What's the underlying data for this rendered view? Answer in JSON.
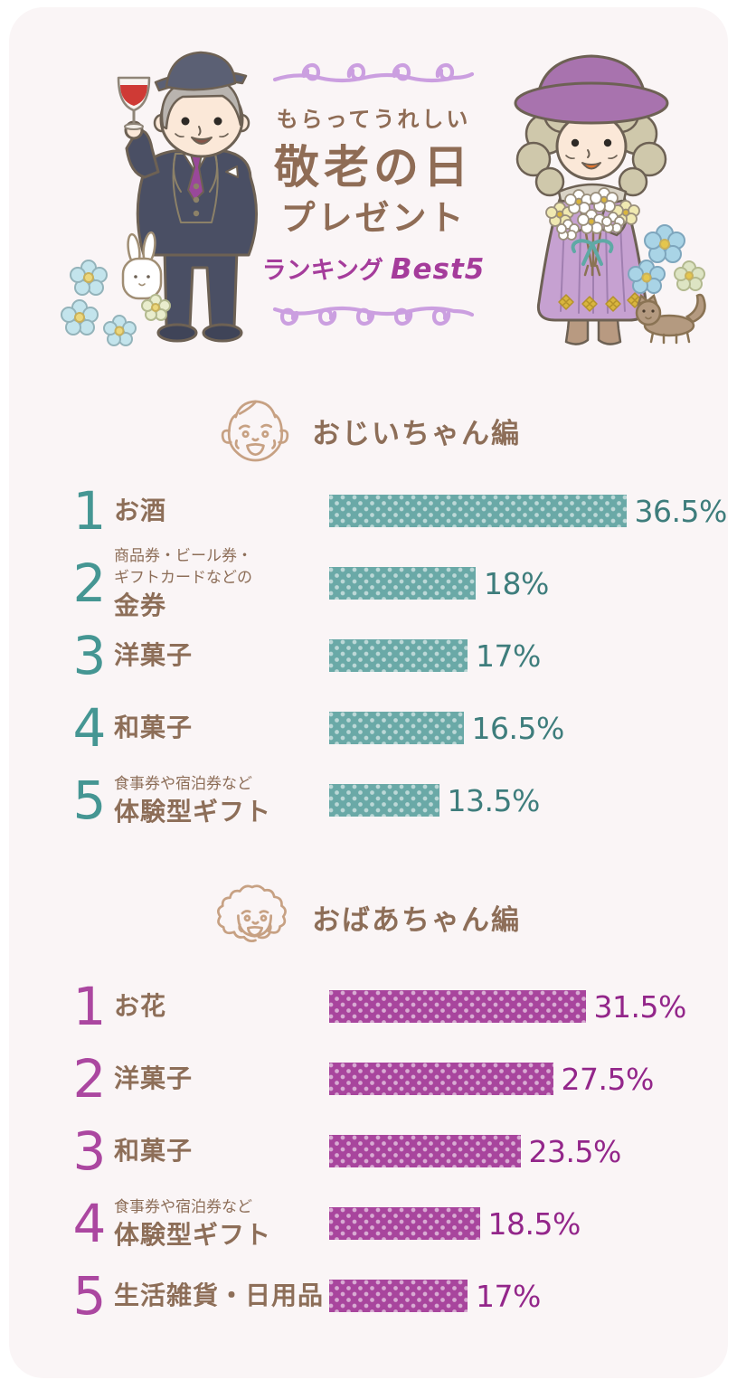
{
  "page": {
    "outer_bg": "#ffffff",
    "card_bg": "#faf5f6",
    "squiggle_color": "#cb9fe0",
    "text_brown": "#8f6c55",
    "icon_tan": "#c7a183"
  },
  "header": {
    "tagline": "もらってうれしい",
    "title_line1": "敬老の日",
    "title_line2": "プレゼント",
    "ranking_label": "ランキング",
    "best5_label": "Best5",
    "accent_color": "#a53c9b"
  },
  "chart_data": [
    {
      "type": "bar",
      "orientation": "horizontal",
      "title": "おじいちゃん編",
      "unit": "%",
      "xlim": [
        0,
        40
      ],
      "bar_color": "#6aa9a7",
      "rank_color": "#459693",
      "value_color": "#3e7d7c",
      "categories": [
        "お酒",
        "金券",
        "洋菓子",
        "和菓子",
        "体験型ギフト"
      ],
      "values": [
        36.5,
        18,
        17,
        16.5,
        13.5
      ],
      "rows": [
        {
          "rank": "1",
          "sublabel_lines": [],
          "label": "お酒",
          "value": 36.5,
          "value_label": "36.5%"
        },
        {
          "rank": "2",
          "sublabel_lines": [
            "商品券・ビール券・",
            "ギフトカードなどの"
          ],
          "label": "金券",
          "value": 18,
          "value_label": "18%"
        },
        {
          "rank": "3",
          "sublabel_lines": [],
          "label": "洋菓子",
          "value": 17,
          "value_label": "17%"
        },
        {
          "rank": "4",
          "sublabel_lines": [],
          "label": "和菓子",
          "value": 16.5,
          "value_label": "16.5%"
        },
        {
          "rank": "5",
          "sublabel_lines": [
            "食事券や宿泊券など"
          ],
          "label": "体験型ギフト",
          "value": 13.5,
          "value_label": "13.5%"
        }
      ]
    },
    {
      "type": "bar",
      "orientation": "horizontal",
      "title": "おばあちゃん編",
      "unit": "%",
      "xlim": [
        0,
        40
      ],
      "bar_color": "#a8459d",
      "rank_color": "#ab47a0",
      "value_color": "#93268a",
      "categories": [
        "お花",
        "洋菓子",
        "和菓子",
        "体験型ギフト",
        "生活雑貨・日用品"
      ],
      "values": [
        31.5,
        27.5,
        23.5,
        18.5,
        17
      ],
      "rows": [
        {
          "rank": "1",
          "sublabel_lines": [],
          "label": "お花",
          "value": 31.5,
          "value_label": "31.5%"
        },
        {
          "rank": "2",
          "sublabel_lines": [],
          "label": "洋菓子",
          "value": 27.5,
          "value_label": "27.5%"
        },
        {
          "rank": "3",
          "sublabel_lines": [],
          "label": "和菓子",
          "value": 23.5,
          "value_label": "23.5%"
        },
        {
          "rank": "4",
          "sublabel_lines": [
            "食事券や宿泊券など"
          ],
          "label": "体験型ギフト",
          "value": 18.5,
          "value_label": "18.5%"
        },
        {
          "rank": "5",
          "sublabel_lines": [],
          "label": "生活雑貨・日用品",
          "value": 17,
          "value_label": "17%"
        }
      ]
    }
  ]
}
